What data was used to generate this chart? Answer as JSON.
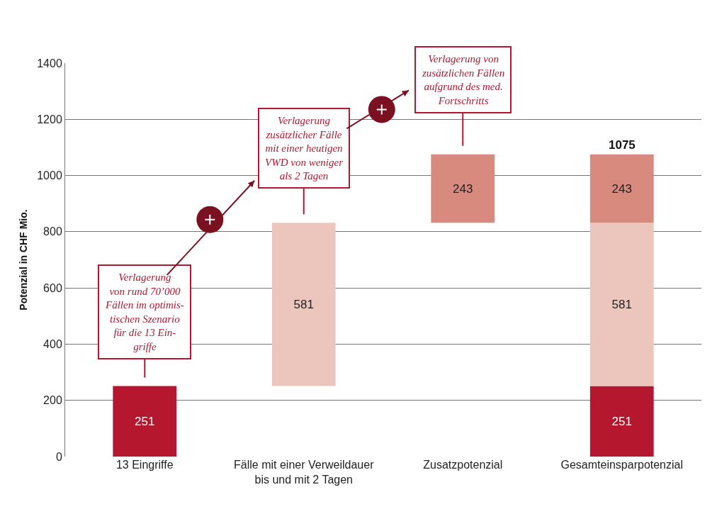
{
  "chart_data": {
    "type": "bar",
    "stacked": true,
    "ylabel": "Potenzial in CHF Mio.",
    "categories": [
      "13 Eingriffe",
      "Fälle mit einer Verweildauer\nbis und mit 2 Tagen",
      "Zusatzpotenzial",
      "Gesamteinsparpotenzial"
    ],
    "series": [
      {
        "color": "#b5172f",
        "values": [
          251,
          null,
          null,
          251
        ]
      },
      {
        "color": "#ecc6bd",
        "values": [
          null,
          581,
          null,
          581
        ],
        "base": [
          null,
          251,
          null,
          null
        ]
      },
      {
        "color": "#d98a7e",
        "values": [
          null,
          null,
          243,
          243
        ],
        "base": [
          null,
          null,
          832,
          null
        ]
      }
    ],
    "data_labels": true,
    "totals": [
      null,
      null,
      null,
      "1075"
    ],
    "ylim": [
      0,
      1400
    ],
    "yticks": [
      0,
      200,
      400,
      600,
      800,
      1000,
      1200,
      1400
    ],
    "grid": "y",
    "annotations": [
      {
        "text": "Verlagerung\nvon rund 70’000\nFällen im optimis-\ntischen Szenario\nfür die 13 Ein-\ngriffe",
        "x": "13 Eingriffe",
        "y": 251
      },
      {
        "text": "Verlagerung\nzusätzlicher Fälle\nmit einer heutigen\nVWD von weniger\nals 2 Tagen",
        "x": "Fälle mit einer Verweildauer\nbis und mit 2 Tagen",
        "y": 832
      },
      {
        "text": "Verlagerung von\nzusätzlichen Fällen\naufgrund des med.\nFortschritts",
        "x": "Zusatzpotenzial",
        "y": 1075
      }
    ]
  }
}
